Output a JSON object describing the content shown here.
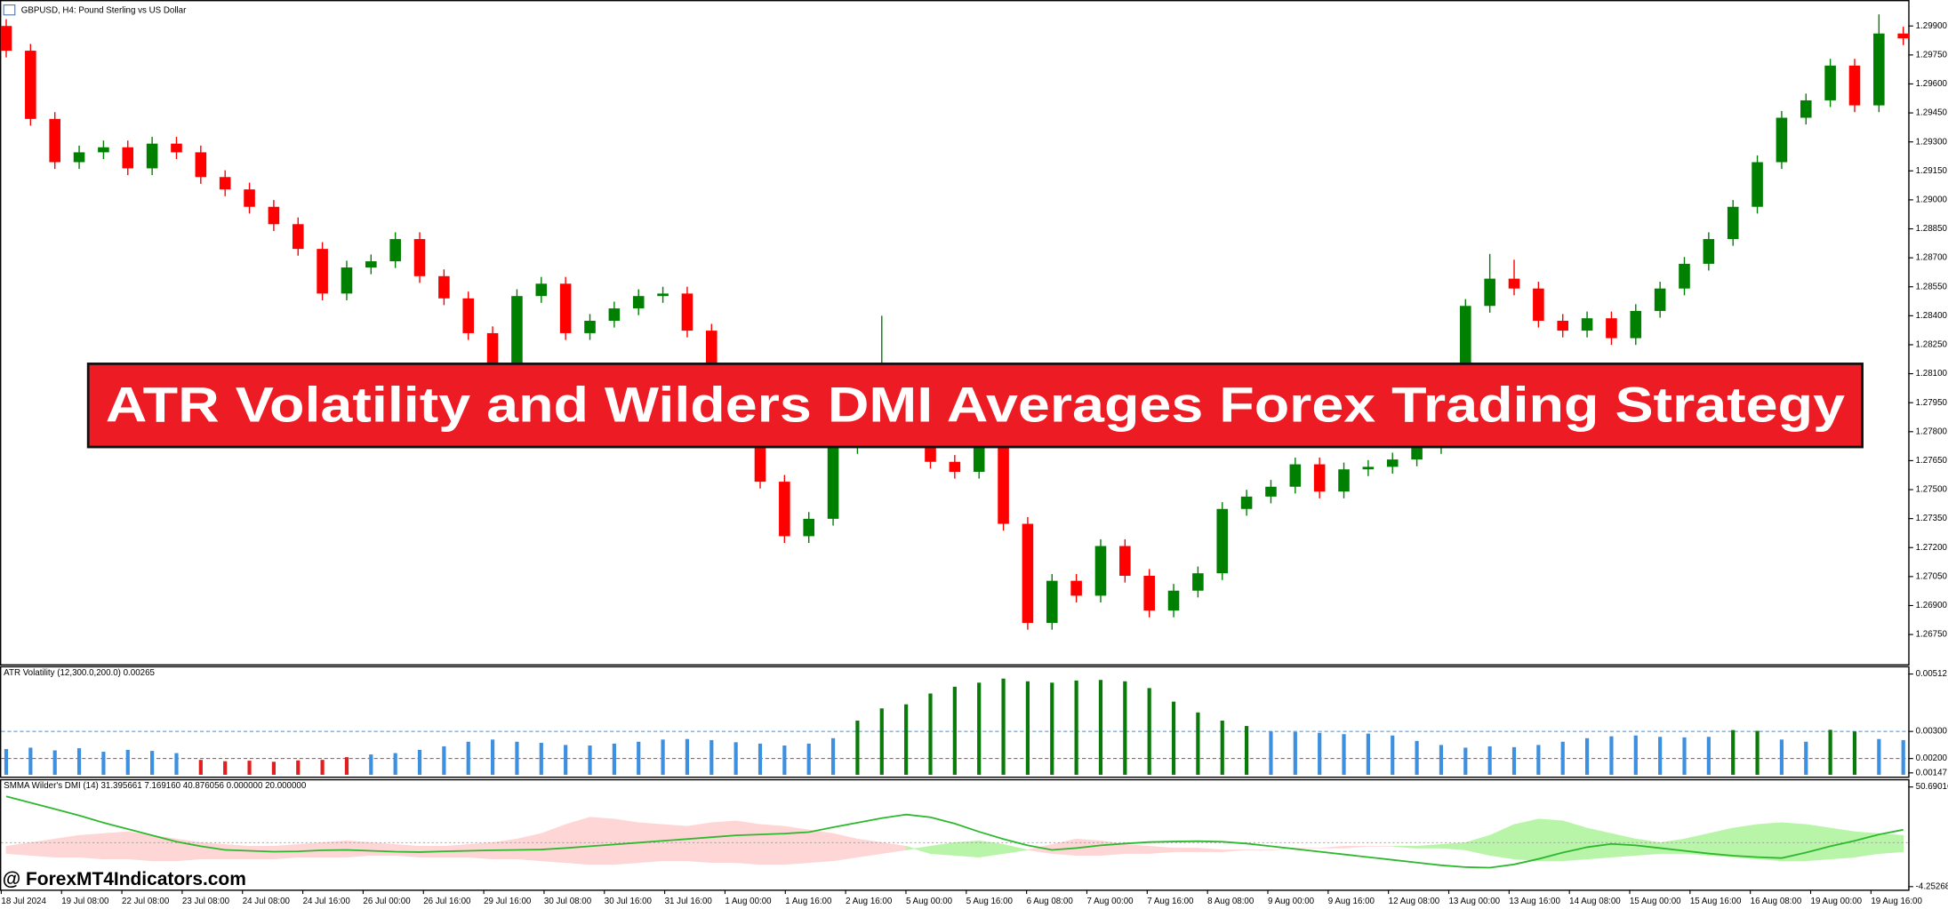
{
  "window": {
    "title": "GBPUSD, H4:  Pound Sterling vs US Dollar"
  },
  "banner": "ATR Volatility and Wilders DMI Averages Forex Trading Strategy",
  "watermark": "@ ForexMT4Indicators.com",
  "x_labels": [
    "18 Jul 2024",
    "19 Jul 08:00",
    "22 Jul 08:00",
    "23 Jul 08:00",
    "24 Jul 08:00",
    "24 Jul 16:00",
    "26 Jul 00:00",
    "26 Jul 16:00",
    "29 Jul 16:00",
    "30 Jul 08:00",
    "30 Jul 16:00",
    "31 Jul 16:00",
    "1 Aug 00:00",
    "1 Aug 16:00",
    "2 Aug 16:00",
    "5 Aug 00:00",
    "5 Aug 16:00",
    "6 Aug 08:00",
    "7 Aug 00:00",
    "7 Aug 16:00",
    "8 Aug 08:00",
    "9 Aug 00:00",
    "9 Aug 16:00",
    "12 Aug 08:00",
    "13 Aug 00:00",
    "13 Aug 16:00",
    "14 Aug 08:00",
    "15 Aug 00:00",
    "15 Aug 16:00",
    "16 Aug 08:00",
    "19 Aug 00:00",
    "19 Aug 16:00"
  ],
  "chart_data": [
    {
      "type": "candlestick",
      "up_color": "#008000",
      "down_color": "#ff0000",
      "open": [
        1.299,
        1.29772,
        1.29419,
        1.29195,
        1.29246,
        1.29272,
        1.29163,
        1.29291,
        1.29246,
        1.29118,
        1.29054,
        1.28964,
        1.28874,
        1.28746,
        1.28515,
        1.2865,
        1.28682,
        1.28797,
        1.28605,
        1.2849,
        1.2831,
        1.28105,
        1.28502,
        1.28566,
        1.2831,
        1.28374,
        1.28438,
        1.28502,
        1.28515,
        1.28323,
        1.28105,
        1.27817,
        1.27541,
        1.27259,
        1.27349,
        1.2772,
        1.27977,
        1.28105,
        1.27849,
        1.27644,
        1.27592,
        1.2772,
        1.27323,
        1.2681,
        1.27028,
        1.26951,
        1.27208,
        1.27054,
        1.26874,
        1.26977,
        1.27067,
        1.274,
        1.27464,
        1.27515,
        1.27631,
        1.2749,
        1.27605,
        1.27618,
        1.27656,
        1.2772,
        1.28105,
        1.28451,
        1.28592,
        1.28541,
        1.28374,
        1.28323,
        1.28387,
        1.28284,
        1.28425,
        1.28541,
        1.28669,
        1.28797,
        1.28964,
        1.29195,
        1.29425,
        1.29515,
        1.29695,
        1.29489,
        1.29861
      ],
      "high": [
        1.29935,
        1.29807,
        1.29454,
        1.29281,
        1.29307,
        1.29307,
        1.29326,
        1.29326,
        1.29281,
        1.29153,
        1.29089,
        1.28999,
        1.28909,
        1.28781,
        1.28685,
        1.28717,
        1.28832,
        1.28832,
        1.2864,
        1.28525,
        1.28345,
        1.28537,
        1.28601,
        1.28601,
        1.28409,
        1.28473,
        1.28537,
        1.2855,
        1.2855,
        1.28358,
        1.2814,
        1.27852,
        1.27576,
        1.27384,
        1.27755,
        1.28012,
        1.284,
        1.2814,
        1.27884,
        1.27679,
        1.27755,
        1.27755,
        1.27358,
        1.27063,
        1.27063,
        1.27243,
        1.27243,
        1.27089,
        1.27012,
        1.27102,
        1.27435,
        1.27499,
        1.2755,
        1.27666,
        1.27666,
        1.2764,
        1.27653,
        1.27691,
        1.27755,
        1.2814,
        1.28486,
        1.2872,
        1.2869,
        1.28576,
        1.28409,
        1.28422,
        1.28422,
        1.2846,
        1.28576,
        1.28704,
        1.28832,
        1.28999,
        1.2923,
        1.2946,
        1.2955,
        1.2973,
        1.2973,
        1.2996,
        1.29896
      ],
      "low": [
        1.29737,
        1.29384,
        1.2916,
        1.2916,
        1.29211,
        1.29128,
        1.29128,
        1.29211,
        1.29083,
        1.29019,
        1.28929,
        1.28839,
        1.28711,
        1.2848,
        1.2848,
        1.28615,
        1.28647,
        1.2857,
        1.28455,
        1.28275,
        1.2807,
        1.2807,
        1.28467,
        1.28275,
        1.28275,
        1.28339,
        1.28403,
        1.28467,
        1.28288,
        1.2807,
        1.27782,
        1.27506,
        1.27224,
        1.27224,
        1.27314,
        1.27685,
        1.27942,
        1.27814,
        1.27609,
        1.27557,
        1.27557,
        1.27288,
        1.26775,
        1.26775,
        1.26916,
        1.26916,
        1.27019,
        1.26839,
        1.26839,
        1.26942,
        1.27032,
        1.27365,
        1.27429,
        1.2748,
        1.27455,
        1.27455,
        1.2757,
        1.27583,
        1.27621,
        1.27685,
        1.2807,
        1.28416,
        1.28506,
        1.28339,
        1.28288,
        1.28288,
        1.28249,
        1.28249,
        1.2839,
        1.28506,
        1.28634,
        1.28762,
        1.28929,
        1.2916,
        1.2939,
        1.2948,
        1.29454,
        1.29454,
        1.29801
      ],
      "close": [
        1.29772,
        1.29419,
        1.29195,
        1.29246,
        1.29272,
        1.29163,
        1.29291,
        1.29246,
        1.29118,
        1.29054,
        1.28964,
        1.28874,
        1.28746,
        1.28515,
        1.2865,
        1.28682,
        1.28797,
        1.28605,
        1.2849,
        1.2831,
        1.28105,
        1.28502,
        1.28566,
        1.2831,
        1.28374,
        1.28438,
        1.28502,
        1.28515,
        1.28323,
        1.28105,
        1.27817,
        1.27541,
        1.27259,
        1.27349,
        1.2772,
        1.27977,
        1.28105,
        1.27849,
        1.27644,
        1.27592,
        1.2772,
        1.27323,
        1.2681,
        1.27028,
        1.26951,
        1.27208,
        1.27054,
        1.26874,
        1.26977,
        1.27067,
        1.274,
        1.27464,
        1.27515,
        1.27631,
        1.2749,
        1.27605,
        1.27618,
        1.27656,
        1.2772,
        1.28105,
        1.28451,
        1.28592,
        1.28541,
        1.28374,
        1.28323,
        1.28387,
        1.28284,
        1.28425,
        1.28541,
        1.28669,
        1.28797,
        1.28964,
        1.29195,
        1.29425,
        1.29515,
        1.29695,
        1.29489,
        1.29861,
        1.29836
      ],
      "ylim": [
        1.26596,
        1.30028
      ],
      "yticks": [
        {
          "value": 1.299,
          "label": "1.29900"
        },
        {
          "value": 1.2975,
          "label": "1.29750"
        },
        {
          "value": 1.296,
          "label": "1.29600"
        },
        {
          "value": 1.2945,
          "label": "1.29450"
        },
        {
          "value": 1.293,
          "label": "1.29300"
        },
        {
          "value": 1.2915,
          "label": "1.29150"
        },
        {
          "value": 1.29,
          "label": "1.29000"
        },
        {
          "value": 1.2885,
          "label": "1.28850"
        },
        {
          "value": 1.287,
          "label": "1.28700"
        },
        {
          "value": 1.2855,
          "label": "1.28550"
        },
        {
          "value": 1.284,
          "label": "1.28400"
        },
        {
          "value": 1.2825,
          "label": "1.28250"
        },
        {
          "value": 1.281,
          "label": "1.28100"
        },
        {
          "value": 1.2795,
          "label": "1.27950"
        },
        {
          "value": 1.278,
          "label": "1.27800"
        },
        {
          "value": 1.2765,
          "label": "1.27650"
        },
        {
          "value": 1.275,
          "label": "1.27500"
        },
        {
          "value": 1.2735,
          "label": "1.27350"
        },
        {
          "value": 1.272,
          "label": "1.27200"
        },
        {
          "value": 1.2705,
          "label": "1.27050"
        },
        {
          "value": 1.269,
          "label": "1.26900"
        },
        {
          "value": 1.2675,
          "label": "1.26750"
        }
      ]
    },
    {
      "type": "bar",
      "title": "ATR Volatility (12,300.0,200.0) 0.00265",
      "values": [
        0.00235,
        0.0024,
        0.0023,
        0.00238,
        0.00225,
        0.00232,
        0.00228,
        0.0022,
        0.00195,
        0.0019,
        0.00192,
        0.00188,
        0.00193,
        0.00195,
        0.00205,
        0.00215,
        0.0022,
        0.00232,
        0.00245,
        0.00262,
        0.0027,
        0.00262,
        0.00258,
        0.0025,
        0.00248,
        0.00255,
        0.00262,
        0.0027,
        0.00272,
        0.00268,
        0.0026,
        0.00255,
        0.00248,
        0.00255,
        0.00275,
        0.0034,
        0.00385,
        0.004,
        0.0044,
        0.00465,
        0.0048,
        0.00495,
        0.00485,
        0.0048,
        0.00488,
        0.0049,
        0.00485,
        0.0046,
        0.0041,
        0.0037,
        0.0034,
        0.0032,
        0.003,
        0.00298,
        0.00295,
        0.0029,
        0.00292,
        0.00285,
        0.00265,
        0.0025,
        0.0024,
        0.00245,
        0.00242,
        0.0025,
        0.00262,
        0.00275,
        0.00282,
        0.00285,
        0.0028,
        0.00278,
        0.0028,
        0.00305,
        0.00302,
        0.0027,
        0.00262,
        0.00306,
        0.003,
        0.00272,
        0.00268
      ],
      "colors": [
        "#3d8fe0",
        "#3d8fe0",
        "#3d8fe0",
        "#3d8fe0",
        "#3d8fe0",
        "#3d8fe0",
        "#3d8fe0",
        "#3d8fe0",
        "#e02020",
        "#e02020",
        "#e02020",
        "#e02020",
        "#e02020",
        "#e02020",
        "#e02020",
        "#3d8fe0",
        "#3d8fe0",
        "#3d8fe0",
        "#3d8fe0",
        "#3d8fe0",
        "#3d8fe0",
        "#3d8fe0",
        "#3d8fe0",
        "#3d8fe0",
        "#3d8fe0",
        "#3d8fe0",
        "#3d8fe0",
        "#3d8fe0",
        "#3d8fe0",
        "#3d8fe0",
        "#3d8fe0",
        "#3d8fe0",
        "#3d8fe0",
        "#3d8fe0",
        "#3d8fe0",
        "#0a7a0a",
        "#0a7a0a",
        "#0a7a0a",
        "#0a7a0a",
        "#0a7a0a",
        "#0a7a0a",
        "#0a7a0a",
        "#0a7a0a",
        "#0a7a0a",
        "#0a7a0a",
        "#0a7a0a",
        "#0a7a0a",
        "#0a7a0a",
        "#0a7a0a",
        "#0a7a0a",
        "#0a7a0a",
        "#0a7a0a",
        "#3d8fe0",
        "#3d8fe0",
        "#3d8fe0",
        "#3d8fe0",
        "#3d8fe0",
        "#3d8fe0",
        "#3d8fe0",
        "#3d8fe0",
        "#3d8fe0",
        "#3d8fe0",
        "#3d8fe0",
        "#3d8fe0",
        "#3d8fe0",
        "#3d8fe0",
        "#3d8fe0",
        "#3d8fe0",
        "#3d8fe0",
        "#3d8fe0",
        "#3d8fe0",
        "#0a7a0a",
        "#0a7a0a",
        "#3d8fe0",
        "#3d8fe0",
        "#0a7a0a",
        "#0a7a0a",
        "#3d8fe0",
        "#3d8fe0"
      ],
      "levels": [
        {
          "value": 0.003,
          "color": "#3d8fe0"
        },
        {
          "value": 0.002,
          "color": "#e03030"
        }
      ],
      "ylim": [
        0.0014,
        0.00525
      ],
      "yticks": [
        0.00512,
        {
          "value": 0.003,
          "label": "0.00300"
        },
        {
          "value": 0.002,
          "label": "0.00200"
        },
        0.00147
      ]
    },
    {
      "type": "line",
      "title": "SMMA Wilder's DMI (14) 31.395661 7.169160 40.876056 0.000000 20.000000",
      "line": {
        "color": "#2eb82e",
        "values": [
          45.5,
          42.0,
          38.5,
          35.0,
          31.0,
          27.5,
          24.0,
          20.5,
          18.0,
          16.0,
          15.5,
          15.0,
          15.2,
          15.8,
          16.0,
          15.5,
          15.0,
          14.8,
          15.2,
          15.5,
          15.8,
          16.0,
          16.2,
          17.0,
          18.0,
          19.0,
          20.0,
          21.0,
          22.0,
          23.0,
          24.0,
          24.5,
          25.0,
          25.8,
          28.5,
          31.0,
          33.5,
          35.5,
          34.0,
          30.5,
          26.0,
          22.0,
          18.5,
          16.0,
          17.0,
          18.5,
          19.5,
          20.3,
          20.6,
          20.8,
          20.5,
          19.5,
          18.0,
          16.5,
          15.0,
          13.5,
          12.0,
          10.5,
          9.0,
          7.5,
          6.5,
          6.2,
          8.0,
          11.0,
          14.5,
          17.5,
          19.3,
          18.5,
          17.0,
          15.5,
          14.0,
          12.8,
          12.0,
          11.5,
          14.5,
          18.0,
          21.0,
          24.5,
          27.1
        ]
      },
      "di_plus": {
        "color": "#b8f5a8",
        "values": [
          14,
          13,
          12,
          12,
          11,
          11,
          10,
          10,
          11,
          11,
          11,
          11,
          12,
          12,
          12,
          13,
          13,
          12,
          12,
          12,
          11,
          11,
          10,
          9,
          8,
          8,
          9,
          10,
          10,
          9,
          9,
          8,
          8,
          9,
          10,
          12,
          14,
          16,
          18,
          20,
          21,
          19,
          16,
          14,
          13,
          13,
          14,
          14,
          15,
          15,
          15,
          16,
          16,
          17,
          17,
          17,
          18,
          18,
          18,
          19,
          20,
          24,
          30,
          33,
          32,
          28,
          25,
          22,
          20,
          22,
          25,
          28,
          30,
          31,
          30,
          28,
          26,
          25,
          24
        ]
      },
      "di_minus": {
        "color": "#ffd6d6",
        "values": [
          18,
          20,
          22,
          24,
          25,
          26,
          24,
          22,
          20,
          19,
          18,
          18,
          19,
          20,
          21,
          20,
          19,
          18,
          18,
          19,
          20,
          22,
          25,
          30,
          34,
          33,
          31,
          30,
          29,
          31,
          32,
          30,
          29,
          27,
          25,
          22,
          20,
          18,
          14,
          13,
          12,
          14,
          16,
          19,
          22,
          21,
          19,
          18,
          17,
          17,
          16,
          16,
          16,
          17,
          17,
          18,
          18,
          18,
          17,
          17,
          16,
          13,
          11,
          10,
          10,
          11,
          12,
          13,
          14,
          14,
          13,
          12,
          11,
          10,
          10,
          11,
          12,
          14,
          15
        ]
      },
      "level": 20,
      "ylim": [
        -5.56,
        53.31
      ],
      "yticks": [
        50.69016,
        -4.252683
      ]
    }
  ]
}
